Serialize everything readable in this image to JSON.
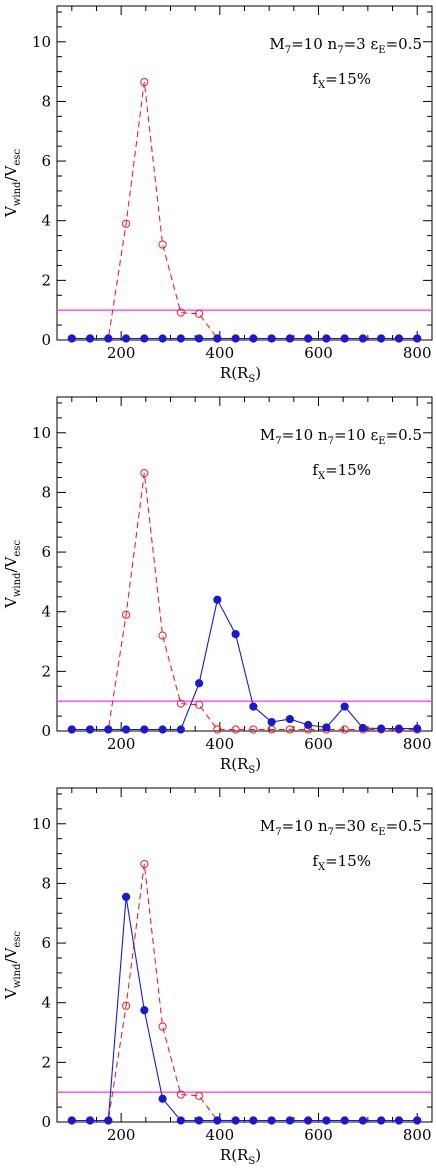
{
  "chart_data": [
    {
      "type": "line",
      "xlabel": {
        "main": "R(R",
        "sub": "S",
        "close": ")"
      },
      "ylabel": {
        "main1": "V",
        "sub1": "wind",
        "slash": "/V",
        "sub2": "esc"
      },
      "xlim": [
        70,
        830
      ],
      "ylim": [
        0,
        11.2
      ],
      "xticks": [
        200,
        400,
        600,
        800
      ],
      "yticks": [
        0,
        2,
        4,
        6,
        8,
        10
      ],
      "annotation": {
        "l1": [
          {
            "t": "M",
            "s": "7"
          },
          {
            "t": "=10  n",
            "s": "7"
          },
          {
            "t": "=3  ",
            "s": ""
          },
          {
            "t": "ε",
            "s": "E"
          },
          {
            "t": "=0.5",
            "s": ""
          }
        ],
        "l2": [
          {
            "t": "f",
            "s": "X"
          },
          {
            "t": "=15%",
            "s": ""
          }
        ]
      },
      "hline": {
        "y": 1,
        "color": "#ff44ff"
      },
      "x": [
        100,
        137,
        174,
        210,
        247,
        284,
        321,
        358,
        395,
        432,
        468,
        505,
        542,
        579,
        616,
        653,
        690,
        727,
        763,
        800
      ],
      "series": [
        {
          "style": "dashed-open",
          "color": "#e8232a",
          "values": [
            0.05,
            0.05,
            0.05,
            3.9,
            8.65,
            3.2,
            0.92,
            0.88,
            0.05,
            0.05,
            0.05,
            0.05,
            0.05,
            0.05,
            0.05,
            0.05,
            0.05,
            0.05,
            0.05,
            0.05
          ]
        },
        {
          "style": "solid-filled",
          "color": "#1a1acc",
          "values": [
            0.05,
            0.05,
            0.05,
            0.05,
            0.05,
            0.05,
            0.05,
            0.05,
            0.05,
            0.05,
            0.05,
            0.05,
            0.05,
            0.05,
            0.05,
            0.05,
            0.05,
            0.05,
            0.05,
            0.05
          ]
        }
      ]
    },
    {
      "type": "line",
      "xlabel": {
        "main": "R(R",
        "sub": "S",
        "close": ")"
      },
      "ylabel": {
        "main1": "V",
        "sub1": "wind",
        "slash": "/V",
        "sub2": "esc"
      },
      "xlim": [
        70,
        830
      ],
      "ylim": [
        0,
        11.2
      ],
      "xticks": [
        200,
        400,
        600,
        800
      ],
      "yticks": [
        0,
        2,
        4,
        6,
        8,
        10
      ],
      "annotation": {
        "l1": [
          {
            "t": "M",
            "s": "7"
          },
          {
            "t": "=10  n",
            "s": "7"
          },
          {
            "t": "=10  ",
            "s": ""
          },
          {
            "t": "ε",
            "s": "E"
          },
          {
            "t": "=0.5",
            "s": ""
          }
        ],
        "l2": [
          {
            "t": "f",
            "s": "X"
          },
          {
            "t": "=15%",
            "s": ""
          }
        ]
      },
      "hline": {
        "y": 1,
        "color": "#ff44ff"
      },
      "x": [
        100,
        137,
        174,
        210,
        247,
        284,
        321,
        358,
        395,
        432,
        468,
        505,
        542,
        579,
        616,
        653,
        690,
        727,
        763,
        800
      ],
      "series": [
        {
          "style": "dashed-open",
          "color": "#e8232a",
          "values": [
            0.05,
            0.05,
            0.05,
            3.9,
            8.65,
            3.2,
            0.92,
            0.88,
            0.05,
            0.05,
            0.05,
            0.05,
            0.05,
            0.05,
            0.05,
            0.05,
            0.05,
            0.05,
            0.05,
            0.05
          ]
        },
        {
          "style": "solid-filled",
          "color": "#1a1acc",
          "values": [
            0.05,
            0.05,
            0.05,
            0.05,
            0.05,
            0.05,
            0.05,
            1.6,
            4.4,
            3.25,
            0.82,
            0.3,
            0.4,
            0.2,
            0.12,
            0.82,
            0.1,
            0.08,
            0.08,
            0.08
          ]
        }
      ]
    },
    {
      "type": "line",
      "xlabel": {
        "main": "R(R",
        "sub": "S",
        "close": ")"
      },
      "ylabel": {
        "main1": "V",
        "sub1": "wind",
        "slash": "/V",
        "sub2": "esc"
      },
      "xlim": [
        70,
        830
      ],
      "ylim": [
        0,
        11.2
      ],
      "xticks": [
        200,
        400,
        600,
        800
      ],
      "yticks": [
        0,
        2,
        4,
        6,
        8,
        10
      ],
      "annotation": {
        "l1": [
          {
            "t": "M",
            "s": "7"
          },
          {
            "t": "=10  n",
            "s": "7"
          },
          {
            "t": "=30  ",
            "s": ""
          },
          {
            "t": "ε",
            "s": "E"
          },
          {
            "t": "=0.5",
            "s": ""
          }
        ],
        "l2": [
          {
            "t": "f",
            "s": "X"
          },
          {
            "t": "=15%",
            "s": ""
          }
        ]
      },
      "hline": {
        "y": 1,
        "color": "#ff44ff"
      },
      "x": [
        100,
        137,
        174,
        210,
        247,
        284,
        321,
        358,
        395,
        432,
        468,
        505,
        542,
        579,
        616,
        653,
        690,
        727,
        763,
        800
      ],
      "series": [
        {
          "style": "dashed-open",
          "color": "#e8232a",
          "values": [
            0.05,
            0.05,
            0.05,
            3.9,
            8.65,
            3.2,
            0.92,
            0.88,
            0.05,
            0.05,
            0.05,
            0.05,
            0.05,
            0.05,
            0.05,
            0.05,
            0.05,
            0.05,
            0.05,
            0.05
          ]
        },
        {
          "style": "solid-filled",
          "color": "#1a1acc",
          "values": [
            0.05,
            0.05,
            0.05,
            7.55,
            3.75,
            0.78,
            0.05,
            0.05,
            0.05,
            0.05,
            0.05,
            0.05,
            0.05,
            0.05,
            0.05,
            0.05,
            0.05,
            0.05,
            0.05,
            0.05
          ]
        }
      ]
    }
  ]
}
